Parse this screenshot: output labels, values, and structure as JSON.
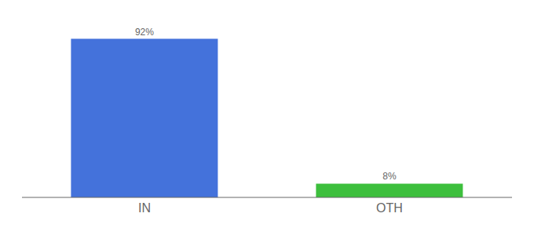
{
  "chart_data": {
    "type": "bar",
    "categories": [
      "IN",
      "OTH"
    ],
    "values": [
      92,
      8
    ],
    "colors": [
      "#4472db",
      "#3dbf3d"
    ],
    "data_labels": true,
    "value_labels": [
      "92%",
      "8%"
    ],
    "ylim": [
      0,
      100
    ],
    "tick_labels": "x",
    "grid": false
  }
}
